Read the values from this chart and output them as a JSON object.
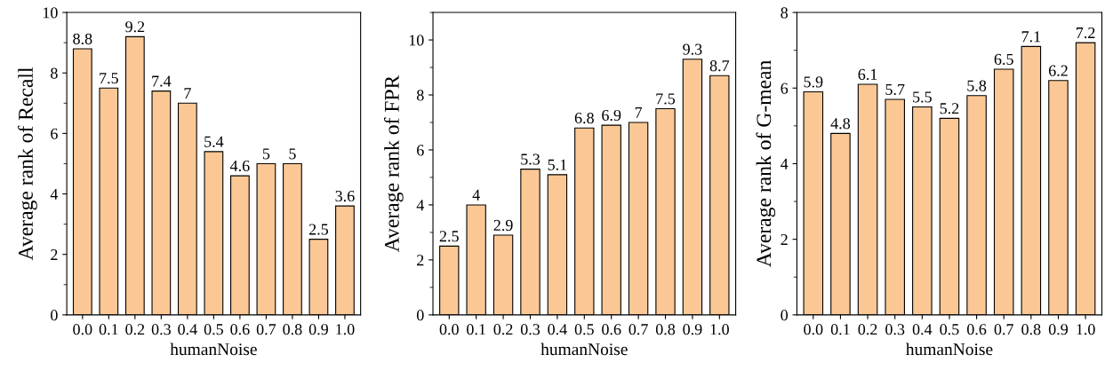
{
  "chart_data": [
    {
      "type": "bar",
      "categories": [
        "0.0",
        "0.1",
        "0.2",
        "0.3",
        "0.4",
        "0.5",
        "0.6",
        "0.7",
        "0.8",
        "0.9",
        "1.0"
      ],
      "values": [
        8.8,
        7.5,
        9.2,
        7.4,
        7,
        5.4,
        4.6,
        5,
        5,
        2.5,
        3.6
      ],
      "color": "#fbc895",
      "xlabel": "humanNoise",
      "ylabel": "Average rank of Recall",
      "ylim": [
        0,
        10
      ],
      "yticks": [
        0,
        2,
        4,
        6,
        8,
        10
      ],
      "data_labels": true,
      "grid": false,
      "legend": false
    },
    {
      "type": "bar",
      "categories": [
        "0.0",
        "0.1",
        "0.2",
        "0.3",
        "0.4",
        "0.5",
        "0.6",
        "0.7",
        "0.8",
        "0.9",
        "1.0"
      ],
      "values": [
        2.5,
        4,
        2.9,
        5.3,
        5.1,
        6.8,
        6.9,
        7,
        7.5,
        9.3,
        8.7
      ],
      "color": "#fbc895",
      "xlabel": "humanNoise",
      "ylabel": "Average rank of FPR",
      "ylim": [
        0,
        11
      ],
      "yticks": [
        0,
        2,
        4,
        6,
        8,
        10
      ],
      "data_labels": true,
      "grid": false,
      "legend": false
    },
    {
      "type": "bar",
      "categories": [
        "0.0",
        "0.1",
        "0.2",
        "0.3",
        "0.4",
        "0.5",
        "0.6",
        "0.7",
        "0.8",
        "0.9",
        "1.0"
      ],
      "values": [
        5.9,
        4.8,
        6.1,
        5.7,
        5.5,
        5.2,
        5.8,
        6.5,
        7.1,
        6.2,
        7.2
      ],
      "color": "#fbc895",
      "xlabel": "humanNoise",
      "ylabel": "Average rank of G-mean",
      "ylim": [
        0,
        8
      ],
      "yticks": [
        0,
        2,
        4,
        6,
        8
      ],
      "data_labels": true,
      "grid": false,
      "legend": false
    }
  ]
}
